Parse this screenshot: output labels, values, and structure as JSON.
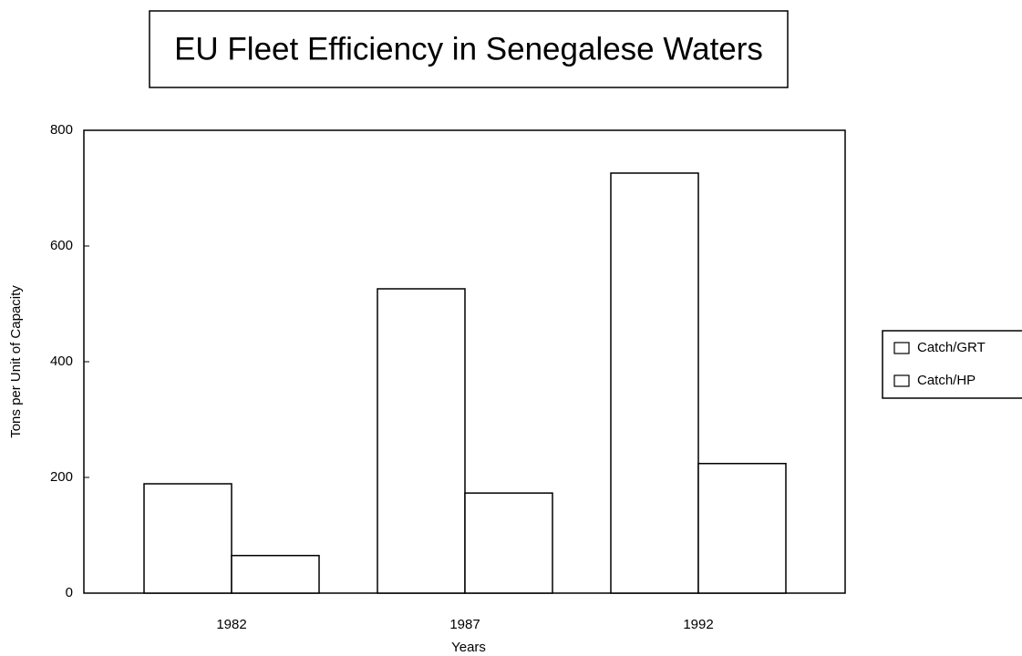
{
  "chart_data": {
    "type": "bar",
    "title": "EU Fleet Efficiency in Senegalese Waters",
    "x_label": "Years",
    "y_label": "Tons per Unit of Capacity",
    "categories": [
      "1982",
      "1987",
      "1992"
    ],
    "series": [
      {
        "name": "Catch/GRT",
        "color": "#ffffff",
        "values": [
          189,
          526,
          726
        ]
      },
      {
        "name": "Catch/HP",
        "color": "#ffffff",
        "values": [
          65,
          173,
          224
        ]
      }
    ],
    "ylim": [
      0,
      800
    ],
    "yticks": [
      0,
      200,
      400,
      600,
      800
    ],
    "grid": false,
    "legend": "right"
  }
}
